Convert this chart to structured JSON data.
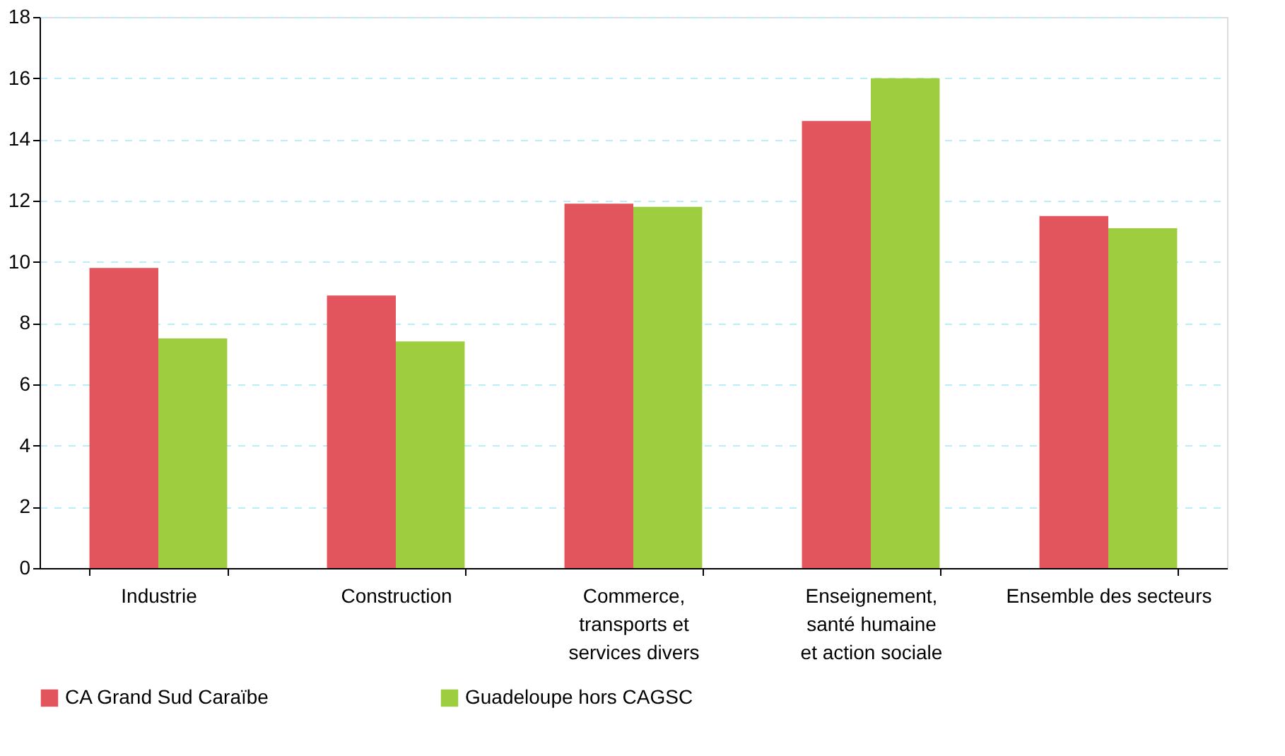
{
  "chart_data": {
    "type": "bar",
    "categories": [
      "Industrie",
      "Construction",
      "Commerce,\ntransports et\nservices divers",
      "Enseignement,\nsanté humaine\net action sociale",
      "Ensemble des secteurs"
    ],
    "series": [
      {
        "name": "CA Grand Sud Caraïbe",
        "color": "#e2555c",
        "values": [
          9.8,
          8.9,
          11.9,
          14.6,
          11.5
        ]
      },
      {
        "name": "Guadeloupe hors CAGSC",
        "color": "#9ecd40",
        "values": [
          7.5,
          7.4,
          11.8,
          16.0,
          11.1
        ]
      }
    ],
    "ylim": [
      0,
      18
    ],
    "yticks": [
      0,
      2,
      4,
      6,
      8,
      10,
      12,
      14,
      16,
      18
    ],
    "grid": "y",
    "legend": "bottom"
  }
}
